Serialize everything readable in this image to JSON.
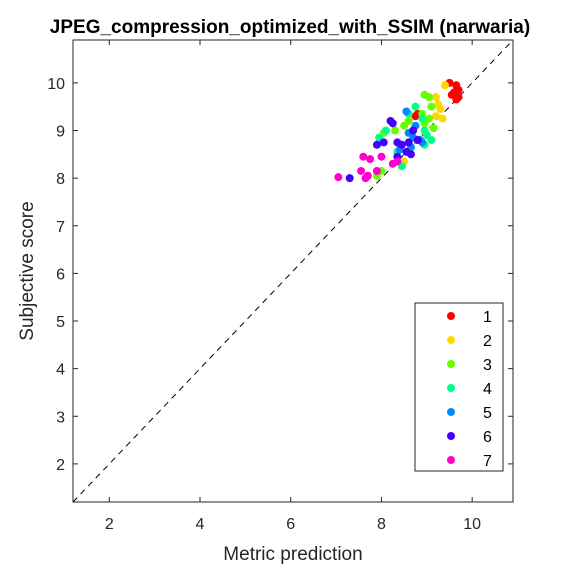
{
  "chart_data": {
    "type": "scatter",
    "title": "JPEG_compression_optimized_with_SSIM (narwaria)",
    "xlabel": "Metric prediction",
    "ylabel": "Subjective score",
    "xlim": [
      1.2,
      10.9
    ],
    "ylim": [
      1.2,
      10.9
    ],
    "xticks": [
      2,
      4,
      6,
      8,
      10
    ],
    "yticks": [
      2,
      3,
      4,
      5,
      6,
      7,
      8,
      9,
      10
    ],
    "grid": false,
    "reference_line": "identity (dashed)",
    "legend_position": "bottom-right",
    "series": [
      {
        "name": "1",
        "color": "#ff0000",
        "points": [
          [
            9.5,
            10.0
          ],
          [
            9.65,
            9.95
          ],
          [
            9.7,
            9.85
          ],
          [
            9.6,
            9.8
          ],
          [
            9.55,
            9.75
          ],
          [
            9.7,
            9.7
          ],
          [
            9.65,
            9.65
          ],
          [
            8.8,
            9.35
          ],
          [
            8.75,
            9.3
          ]
        ]
      },
      {
        "name": "2",
        "color": "#ffd700",
        "points": [
          [
            9.4,
            9.95
          ],
          [
            9.2,
            9.7
          ],
          [
            9.25,
            9.55
          ],
          [
            9.3,
            9.45
          ],
          [
            9.2,
            9.3
          ],
          [
            9.35,
            9.25
          ],
          [
            8.5,
            8.35
          ]
        ]
      },
      {
        "name": "3",
        "color": "#66ff00",
        "points": [
          [
            8.95,
            9.75
          ],
          [
            9.05,
            9.7
          ],
          [
            9.1,
            9.5
          ],
          [
            8.9,
            9.35
          ],
          [
            9.05,
            9.25
          ],
          [
            9.15,
            9.05
          ],
          [
            8.95,
            9.15
          ],
          [
            8.6,
            9.2
          ],
          [
            8.5,
            9.1
          ],
          [
            8.3,
            9.0
          ],
          [
            8.05,
            8.95
          ],
          [
            8.0,
            8.15
          ],
          [
            7.9,
            8.05
          ]
        ]
      },
      {
        "name": "4",
        "color": "#00ff88",
        "points": [
          [
            8.75,
            9.5
          ],
          [
            8.6,
            9.35
          ],
          [
            8.9,
            9.25
          ],
          [
            8.95,
            9.0
          ],
          [
            9.0,
            8.9
          ],
          [
            9.1,
            8.8
          ],
          [
            8.95,
            8.7
          ],
          [
            8.1,
            9.0
          ],
          [
            7.95,
            8.85
          ],
          [
            8.35,
            8.55
          ],
          [
            8.45,
            8.25
          ]
        ]
      },
      {
        "name": "5",
        "color": "#0088ff",
        "points": [
          [
            8.55,
            9.4
          ],
          [
            8.75,
            9.1
          ],
          [
            8.6,
            8.95
          ],
          [
            8.7,
            8.85
          ],
          [
            8.85,
            8.8
          ],
          [
            8.9,
            8.75
          ],
          [
            8.4,
            8.6
          ],
          [
            8.65,
            8.65
          ]
        ]
      },
      {
        "name": "6",
        "color": "#4400ff",
        "points": [
          [
            8.2,
            9.2
          ],
          [
            8.25,
            9.15
          ],
          [
            8.7,
            9.0
          ],
          [
            8.8,
            8.8
          ],
          [
            8.6,
            8.75
          ],
          [
            8.45,
            8.7
          ],
          [
            8.35,
            8.75
          ],
          [
            8.55,
            8.55
          ],
          [
            8.65,
            8.5
          ],
          [
            8.35,
            8.45
          ],
          [
            7.9,
            8.7
          ],
          [
            8.05,
            8.75
          ],
          [
            7.3,
            8.0
          ]
        ]
      },
      {
        "name": "7",
        "color": "#ff00cc",
        "points": [
          [
            7.6,
            8.45
          ],
          [
            7.75,
            8.4
          ],
          [
            8.0,
            8.45
          ],
          [
            7.55,
            8.15
          ],
          [
            7.7,
            8.05
          ],
          [
            7.9,
            8.15
          ],
          [
            8.25,
            8.3
          ],
          [
            8.35,
            8.35
          ],
          [
            7.05,
            8.02
          ],
          [
            7.65,
            8.0
          ]
        ]
      }
    ]
  }
}
